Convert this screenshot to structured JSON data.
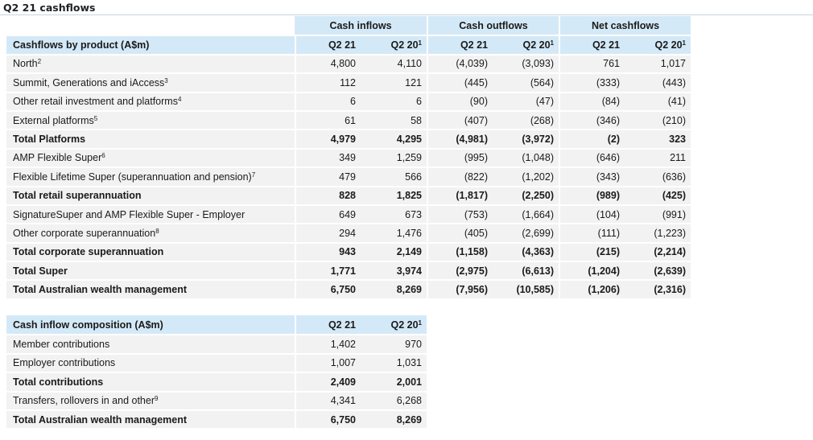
{
  "title": "Q2 21 cashflows",
  "table1": {
    "groups": [
      "Cash inflows",
      "Cash outflows",
      "Net cashflows"
    ],
    "header_label": "Cashflows by product (A$m)",
    "col_heads": [
      "Q2 21",
      "Q2 20",
      "Q2 21",
      "Q2 20",
      "Q2 21",
      "Q2 20"
    ],
    "col_sups": [
      "",
      "1",
      "",
      "1",
      "",
      "1"
    ],
    "rows": [
      {
        "label": "North",
        "sup": "2",
        "bold": false,
        "values": [
          "4,800",
          "4,110",
          "(4,039)",
          "(3,093)",
          "761",
          "1,017"
        ]
      },
      {
        "label": "Summit, Generations and iAccess",
        "sup": "3",
        "bold": false,
        "values": [
          "112",
          "121",
          "(445)",
          "(564)",
          "(333)",
          "(443)"
        ]
      },
      {
        "label": "Other retail investment and platforms",
        "sup": "4",
        "bold": false,
        "values": [
          "6",
          "6",
          "(90)",
          "(47)",
          "(84)",
          "(41)"
        ]
      },
      {
        "label": "External platforms",
        "sup": "5",
        "bold": false,
        "values": [
          "61",
          "58",
          "(407)",
          "(268)",
          "(346)",
          "(210)"
        ]
      },
      {
        "label": "Total Platforms",
        "sup": "",
        "bold": true,
        "values": [
          "4,979",
          "4,295",
          "(4,981)",
          "(3,972)",
          "(2)",
          "323"
        ]
      },
      {
        "label": "AMP Flexible Super",
        "sup": "6",
        "bold": false,
        "values": [
          "349",
          "1,259",
          "(995)",
          "(1,048)",
          "(646)",
          "211"
        ]
      },
      {
        "label": "Flexible Lifetime Super (superannuation and pension)",
        "sup": "7",
        "bold": false,
        "values": [
          "479",
          "566",
          "(822)",
          "(1,202)",
          "(343)",
          "(636)"
        ]
      },
      {
        "label": "Total retail superannuation",
        "sup": "",
        "bold": true,
        "values": [
          "828",
          "1,825",
          "(1,817)",
          "(2,250)",
          "(989)",
          "(425)"
        ]
      },
      {
        "label": "SignatureSuper and AMP Flexible Super - Employer",
        "sup": "",
        "bold": false,
        "values": [
          "649",
          "673",
          "(753)",
          "(1,664)",
          "(104)",
          "(991)"
        ]
      },
      {
        "label": "Other corporate superannuation",
        "sup": "8",
        "bold": false,
        "values": [
          "294",
          "1,476",
          "(405)",
          "(2,699)",
          "(111)",
          "(1,223)"
        ]
      },
      {
        "label": "Total corporate superannuation",
        "sup": "",
        "bold": true,
        "values": [
          "943",
          "2,149",
          "(1,158)",
          "(4,363)",
          "(215)",
          "(2,214)"
        ]
      },
      {
        "label": "Total Super",
        "sup": "",
        "bold": true,
        "values": [
          "1,771",
          "3,974",
          "(2,975)",
          "(6,613)",
          "(1,204)",
          "(2,639)"
        ]
      },
      {
        "label": "Total Australian wealth management",
        "sup": "",
        "bold": true,
        "values": [
          "6,750",
          "8,269",
          "(7,956)",
          "(10,585)",
          "(1,206)",
          "(2,316)"
        ]
      }
    ]
  },
  "table2": {
    "header_label": "Cash inflow composition (A$m)",
    "col_heads": [
      "Q2 21",
      "Q2 20"
    ],
    "col_sups": [
      "",
      "1"
    ],
    "rows": [
      {
        "label": "Member contributions",
        "sup": "",
        "bold": false,
        "values": [
          "1,402",
          "970"
        ]
      },
      {
        "label": "Employer contributions",
        "sup": "",
        "bold": false,
        "values": [
          "1,007",
          "1,031"
        ]
      },
      {
        "label": "Total contributions",
        "sup": "",
        "bold": true,
        "values": [
          "2,409",
          "2,001"
        ]
      },
      {
        "label": "Transfers, rollovers in and other",
        "sup": "9",
        "bold": false,
        "values": [
          "4,341",
          "6,268"
        ]
      },
      {
        "label": "Total Australian wealth management",
        "sup": "",
        "bold": true,
        "values": [
          "6,750",
          "8,269"
        ]
      }
    ]
  }
}
